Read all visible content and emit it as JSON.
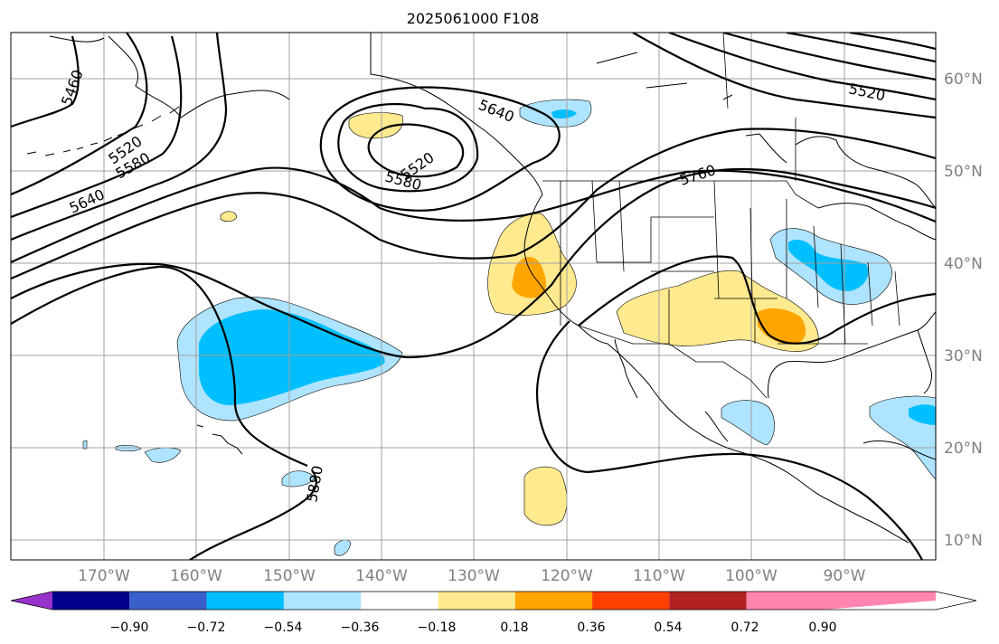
{
  "title": "2025061000 F108",
  "map": {
    "lon_labels": [
      "170°W",
      "160°W",
      "150°W",
      "140°W",
      "130°W",
      "120°W",
      "110°W",
      "100°W",
      "90°W"
    ],
    "lat_labels": [
      "60°N",
      "50°N",
      "40°N",
      "30°N",
      "20°N",
      "10°N"
    ],
    "contour_labels": [
      "5460",
      "5520",
      "5580",
      "5640",
      "5520",
      "5580",
      "5640",
      "5760",
      "5520",
      "5880"
    ]
  },
  "colorbar": {
    "ticks": [
      "−0.90",
      "−0.72",
      "−0.54",
      "−0.36",
      "−0.18",
      "0.18",
      "0.36",
      "0.54",
      "0.72",
      "0.90"
    ],
    "colors": [
      "#9932cc",
      "#00008b",
      "#3a5fcd",
      "#00bfff",
      "#aee4ff",
      "#ffffff",
      "#ffea8f",
      "#ffa500",
      "#ff3f00",
      "#b22222",
      "#ff85b0"
    ]
  }
}
